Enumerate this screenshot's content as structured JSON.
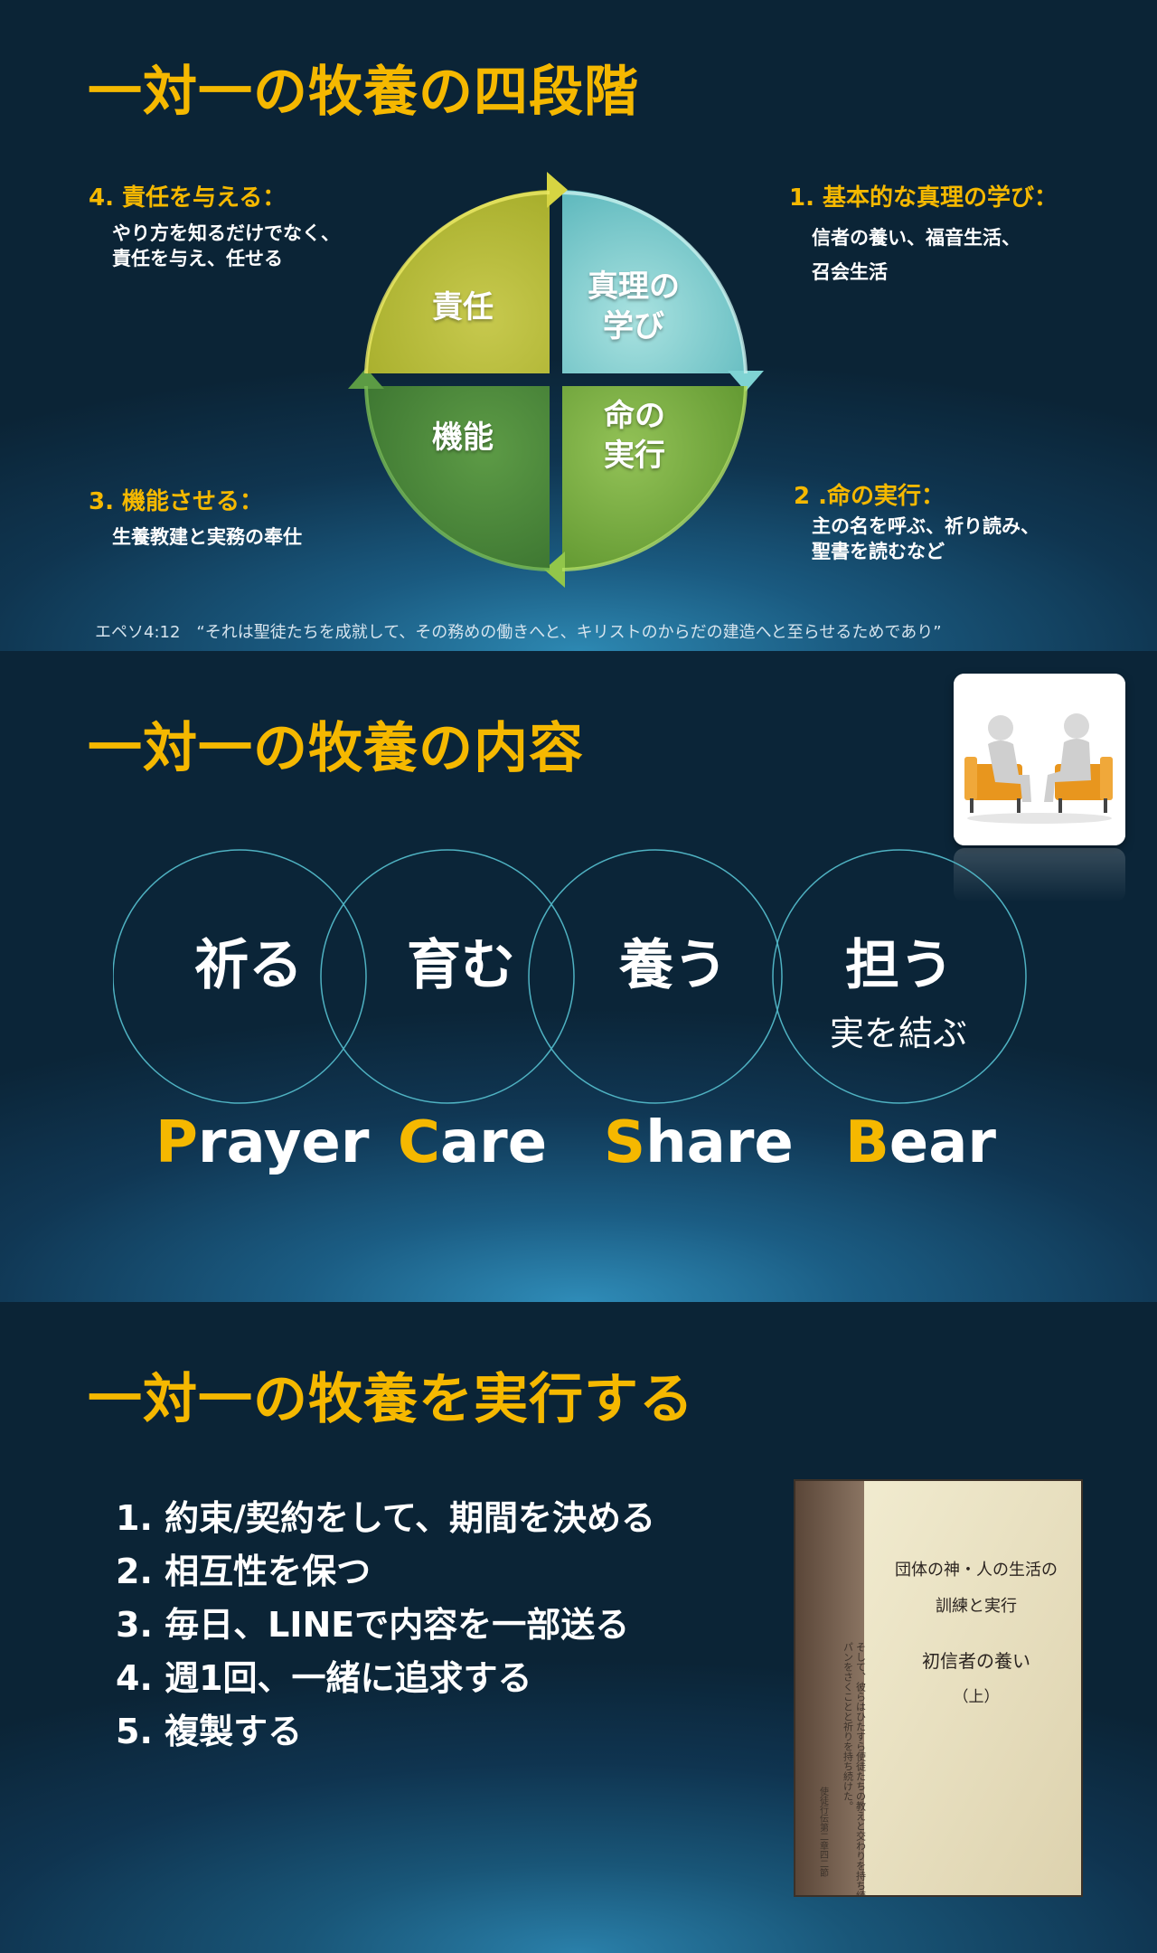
{
  "slide1": {
    "title": "一対一の牧養の四段階",
    "quadrants": {
      "q1": {
        "heading": "1. 基本的な真理の学び：",
        "lines": [
          "信者の養い、福音生活、",
          "召会生活"
        ]
      },
      "q2": {
        "heading": "2 .命の実行：",
        "lines": [
          "主の名を呼ぶ、祈り読み、",
          "聖書を読むなど"
        ]
      },
      "q3": {
        "heading": "3. 機能させる：",
        "lines": [
          "生養教建と実務の奉仕"
        ]
      },
      "q4": {
        "heading": "4. 責任を与える：",
        "lines": [
          "やり方を知るだけでなく、",
          "責任を与え、任せる"
        ]
      }
    },
    "segments": {
      "truth": [
        "真理の",
        "学び"
      ],
      "life": [
        "命の",
        "実行"
      ],
      "function": [
        "機能"
      ],
      "responsibility": [
        "責任"
      ]
    },
    "colors": {
      "truth": "#7ccfd0",
      "life": "#7fb24a",
      "function": "#4f8a3c",
      "responsibility": "#b9be3a"
    },
    "verse": "エペソ4:12　“それは聖徒たちを成就して、その務めの働きへと、キリストのからだの建造へと至らせるためであり”"
  },
  "slide2": {
    "title": "一対一の牧養の内容",
    "circles": [
      {
        "main": "祈る",
        "sub": ""
      },
      {
        "main": "育む",
        "sub": ""
      },
      {
        "main": "養う",
        "sub": ""
      },
      {
        "main": "担う",
        "sub": "実を結ぶ"
      }
    ],
    "english": [
      {
        "initial": "P",
        "rest": "rayer"
      },
      {
        "initial": "C",
        "rest": "are"
      },
      {
        "initial": "S",
        "rest": "hare"
      },
      {
        "initial": "B",
        "rest": "ear"
      }
    ]
  },
  "slide3": {
    "title": "一対一の牧養を実行する",
    "steps": [
      "1. 約束/契約をして、期間を決める",
      "2. 相互性を保つ",
      "3. 毎日、LINEで内容を一部送る",
      "4. 週1回、一緒に追求する",
      "5. 複製する"
    ],
    "book": {
      "title_line1": "団体の神・人の生活の",
      "title_line2": "訓練と実行",
      "subtitle": "初信者の養い",
      "volume": "（上）",
      "quote_col1": "そして、彼らはひたすら使徒たちの教えと交わりを持ち続け、",
      "quote_col2": "パンをさくことと祈りを持ち続けた。",
      "reference": "使徒行伝第二章四二節"
    }
  }
}
